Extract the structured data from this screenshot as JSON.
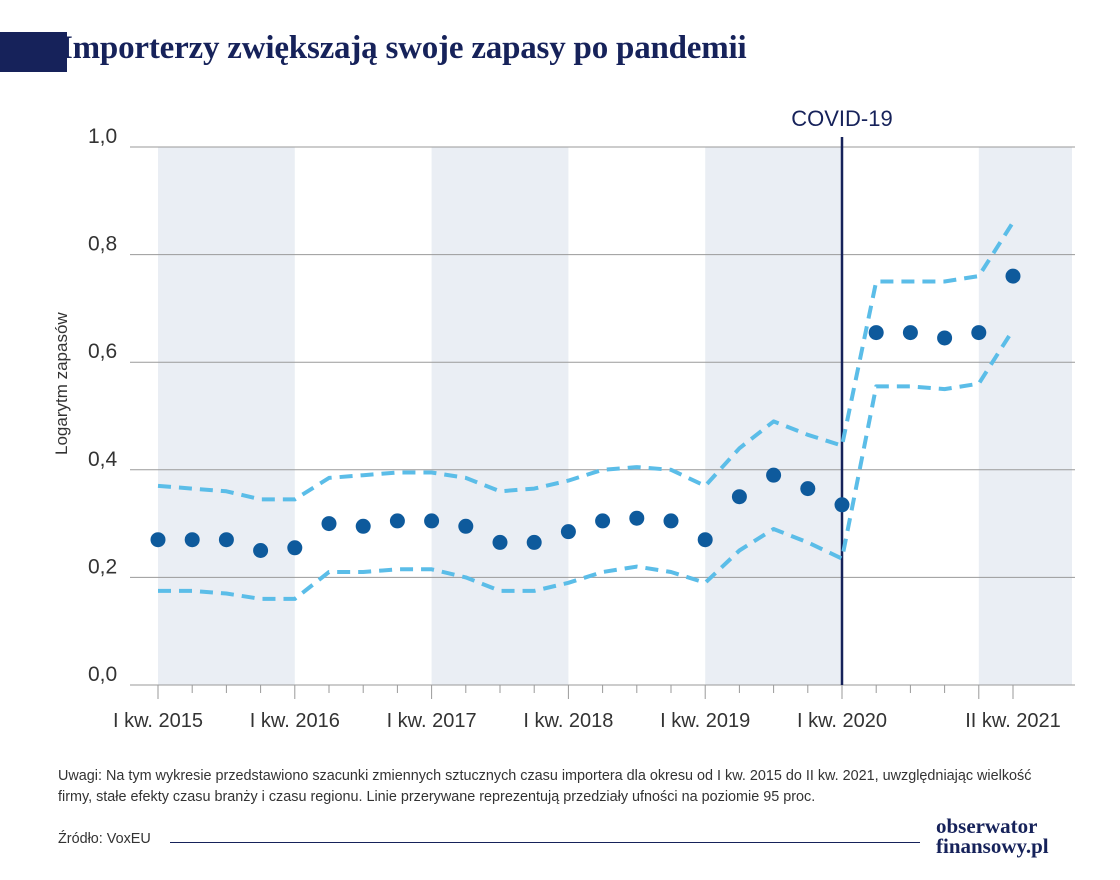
{
  "header": {
    "title": "Importerzy zwiększają swoje zapasy po pandemii"
  },
  "chart_data": {
    "type": "scatter",
    "title": "Importerzy zwiększają swoje zapasy po pandemii",
    "ylabel": "Logarytm zapasów",
    "xlabel": "",
    "ylim": [
      0,
      1
    ],
    "yticks": [
      "1,0",
      "0,8",
      "0,6",
      "0,4",
      "0,2",
      "0,0"
    ],
    "ytick_values": [
      1.0,
      0.8,
      0.6,
      0.4,
      0.2,
      0.0
    ],
    "grid": true,
    "x_labels": [
      {
        "label": "I kw. 2015",
        "index": 0
      },
      {
        "label": "I kw. 2016",
        "index": 4
      },
      {
        "label": "I kw. 2017",
        "index": 8
      },
      {
        "label": "I kw. 2018",
        "index": 12
      },
      {
        "label": "I kw. 2019",
        "index": 16
      },
      {
        "label": "I kw. 2020",
        "index": 20
      },
      {
        "label": "II kw. 2021",
        "index": 25
      }
    ],
    "shaded_years": [
      2015,
      2017,
      2019,
      2021
    ],
    "annotation": {
      "label": "COVID-19",
      "index": 20
    },
    "series": [
      {
        "kind": "estimate",
        "color": "#0e5a9c",
        "values": [
          0.27,
          0.27,
          0.27,
          0.25,
          0.255,
          0.3,
          0.295,
          0.305,
          0.305,
          0.295,
          0.265,
          0.265,
          0.285,
          0.305,
          0.31,
          0.305,
          0.27,
          0.35,
          0.39,
          0.365,
          0.335,
          0.655,
          0.655,
          0.645,
          0.655,
          0.76
        ]
      },
      {
        "kind": "upper_ci",
        "color": "#5bbde8",
        "values": [
          0.37,
          0.365,
          0.36,
          0.345,
          0.345,
          0.385,
          0.39,
          0.395,
          0.395,
          0.385,
          0.36,
          0.365,
          0.38,
          0.4,
          0.405,
          0.4,
          0.37,
          0.44,
          0.49,
          0.465,
          0.445,
          0.75,
          0.75,
          0.75,
          0.76,
          0.86
        ]
      },
      {
        "kind": "lower_ci",
        "color": "#5bbde8",
        "values": [
          0.175,
          0.175,
          0.17,
          0.16,
          0.16,
          0.21,
          0.21,
          0.215,
          0.215,
          0.2,
          0.175,
          0.175,
          0.19,
          0.21,
          0.22,
          0.21,
          0.19,
          0.25,
          0.29,
          0.265,
          0.235,
          0.555,
          0.555,
          0.55,
          0.56,
          0.66
        ]
      }
    ]
  },
  "notes": {
    "text": "Uwagi: Na tym wykresie przedstawiono szacunki zmiennych sztucznych czasu importera dla okresu od I kw. 2015 do II kw. 2021, uwzględniając wielkość firmy, stałe efekty czasu branży i czasu regionu. Linie przerywane reprezentują przedziały ufności na poziomie 95 proc."
  },
  "footer": {
    "source": "Źródło: VoxEU",
    "logo_line1": "obserwator",
    "logo_line2": "finansowy.pl"
  },
  "colors": {
    "navy": "#16225a",
    "shade": "#eaeef4",
    "grid": "#9a9a9a",
    "dots": "#0e5a9c",
    "ci": "#5bbde8"
  }
}
